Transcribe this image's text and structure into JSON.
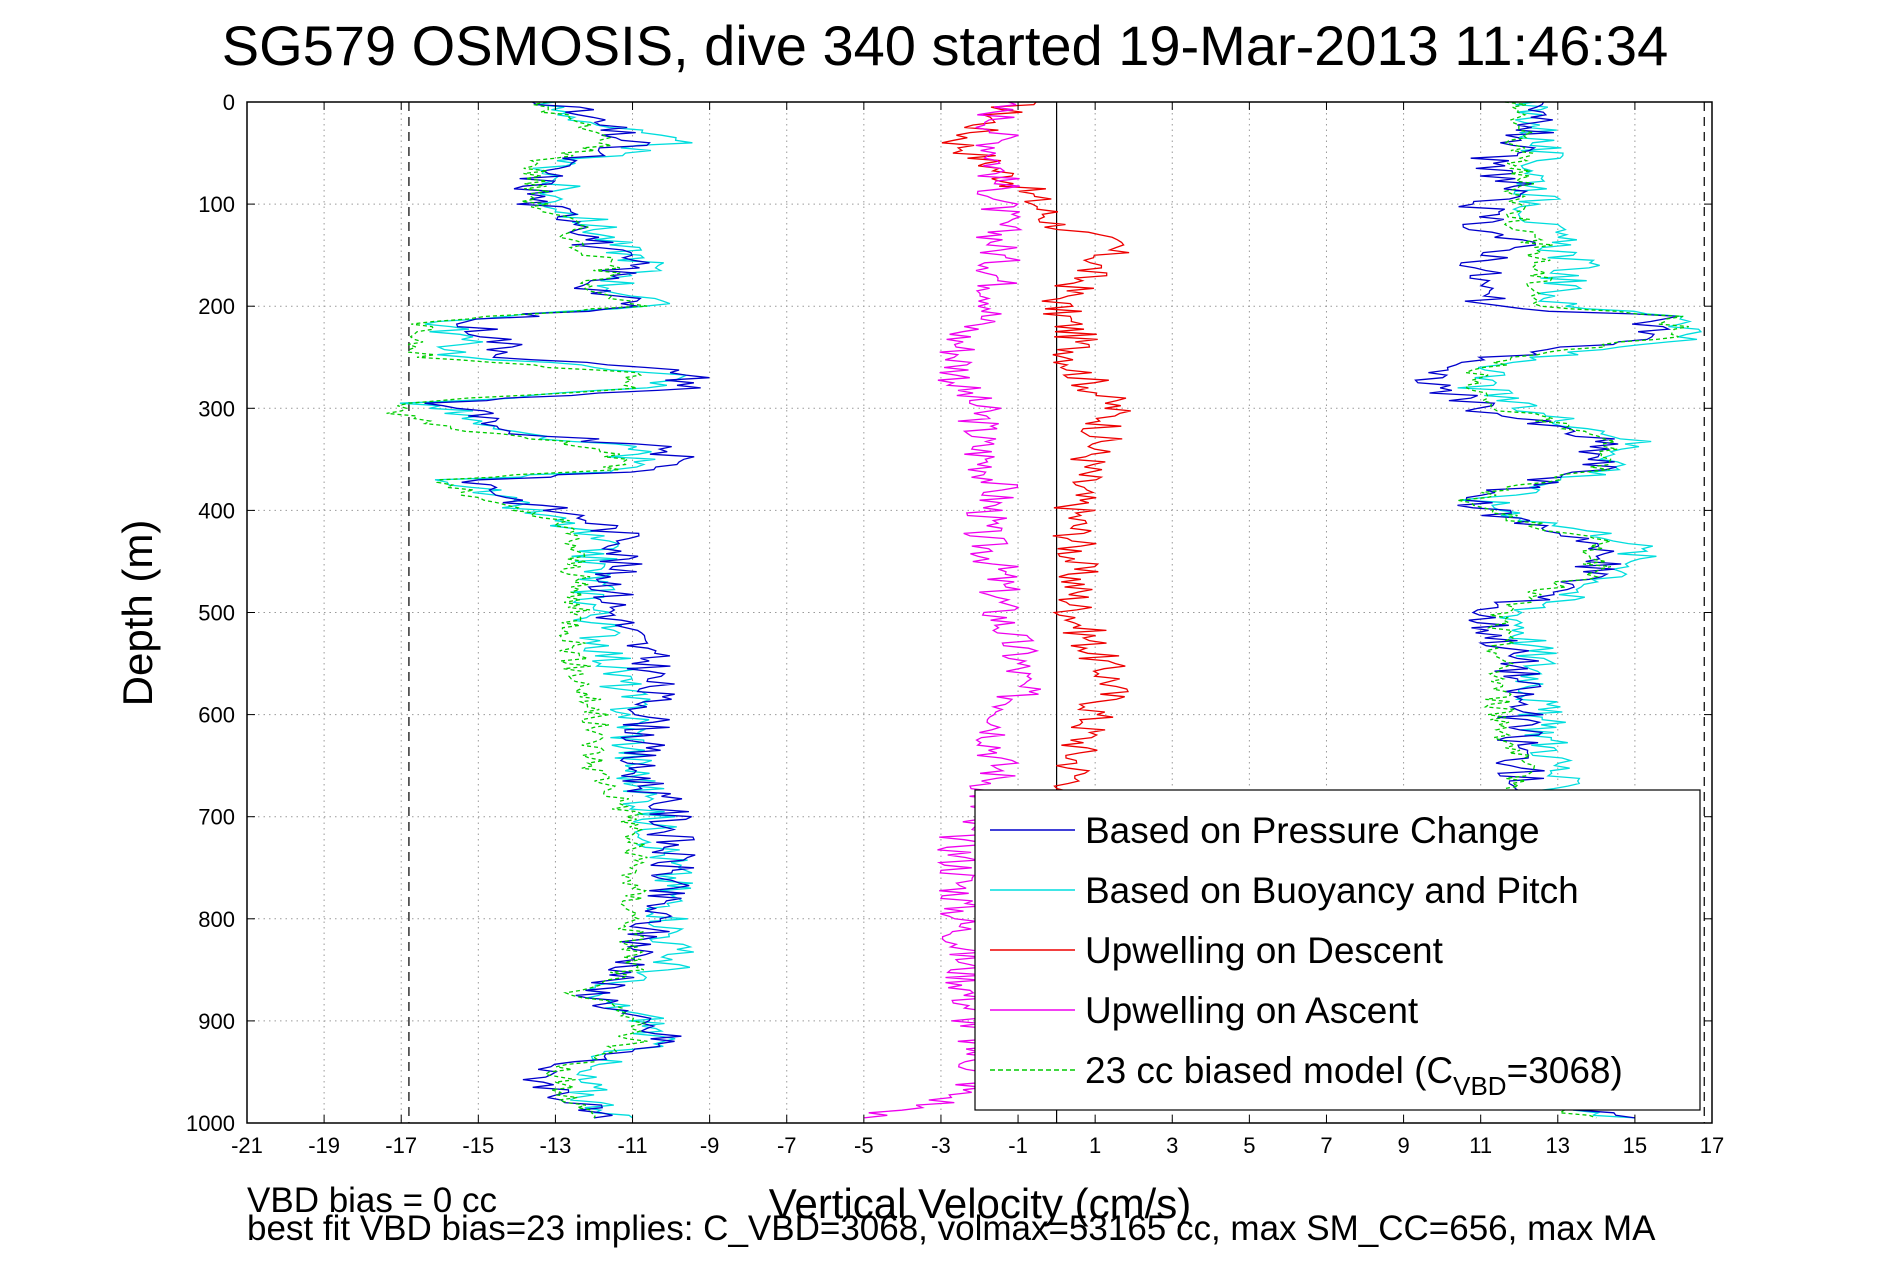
{
  "chart_data": {
    "type": "line",
    "title": "SG579 OSMOSIS, dive 340 started 19-Mar-2013 11:46:34",
    "xlabel": "Vertical Velocity (cm/s)",
    "ylabel": "Depth (m)",
    "xlim": [
      -21,
      17
    ],
    "ylim": [
      1000,
      0
    ],
    "y_reversed": true,
    "grid": true,
    "xticks": [
      "-21",
      "-19",
      "-17",
      "-15",
      "-13",
      "-11",
      "-9",
      "-7",
      "-5",
      "-3",
      "-1",
      "1",
      "3",
      "5",
      "7",
      "9",
      "11",
      "13",
      "15",
      "17"
    ],
    "yticks": [
      "0",
      "100",
      "200",
      "300",
      "400",
      "500",
      "600",
      "700",
      "800",
      "900",
      "1000"
    ],
    "reference_lines": {
      "dashed_x": [
        -16.8,
        16.8
      ],
      "solid_x": [
        0
      ]
    },
    "legend_position": "lower-right",
    "series": [
      {
        "name": "Based on Pressure Change",
        "color": "#0000cc",
        "descent": [
          [
            0,
            -13
          ],
          [
            20,
            -12
          ],
          [
            40,
            -11
          ],
          [
            60,
            -13
          ],
          [
            80,
            -13.5
          ],
          [
            100,
            -13.5
          ],
          [
            120,
            -12
          ],
          [
            140,
            -12
          ],
          [
            160,
            -11
          ],
          [
            180,
            -12
          ],
          [
            200,
            -11
          ],
          [
            215,
            -15.5
          ],
          [
            230,
            -14.5
          ],
          [
            250,
            -14
          ],
          [
            265,
            -9.5
          ],
          [
            280,
            -9.5
          ],
          [
            295,
            -16
          ],
          [
            305,
            -15
          ],
          [
            320,
            -15
          ],
          [
            340,
            -10
          ],
          [
            360,
            -10
          ],
          [
            370,
            -15
          ],
          [
            390,
            -14
          ],
          [
            410,
            -12
          ],
          [
            430,
            -11
          ],
          [
            460,
            -11.5
          ],
          [
            500,
            -11.5
          ],
          [
            550,
            -10.5
          ],
          [
            600,
            -10.5
          ],
          [
            650,
            -11
          ],
          [
            700,
            -10
          ],
          [
            750,
            -10
          ],
          [
            800,
            -10.5
          ],
          [
            850,
            -11
          ],
          [
            870,
            -12
          ],
          [
            900,
            -11
          ],
          [
            920,
            -10
          ],
          [
            950,
            -13.5
          ],
          [
            980,
            -12.5
          ],
          [
            995,
            -12
          ]
        ],
        "ascent": [
          [
            995,
            15
          ],
          [
            980,
            12
          ],
          [
            950,
            12
          ],
          [
            900,
            12
          ],
          [
            850,
            12
          ],
          [
            800,
            12.5
          ],
          [
            750,
            12.5
          ],
          [
            700,
            12.5
          ],
          [
            650,
            12
          ],
          [
            600,
            12
          ],
          [
            550,
            12
          ],
          [
            500,
            11
          ],
          [
            480,
            13
          ],
          [
            460,
            14
          ],
          [
            430,
            14
          ],
          [
            410,
            12
          ],
          [
            390,
            10.5
          ],
          [
            360,
            14
          ],
          [
            330,
            14
          ],
          [
            300,
            11
          ],
          [
            280,
            10
          ],
          [
            265,
            9.5
          ],
          [
            250,
            11.5
          ],
          [
            230,
            15.5
          ],
          [
            210,
            15.5
          ],
          [
            200,
            11
          ],
          [
            180,
            11
          ],
          [
            160,
            11
          ],
          [
            140,
            12
          ],
          [
            120,
            11
          ],
          [
            100,
            11
          ],
          [
            80,
            12
          ],
          [
            60,
            11
          ],
          [
            40,
            12
          ],
          [
            20,
            12.5
          ],
          [
            0,
            12
          ]
        ]
      },
      {
        "name": "Based on Buoyancy and Pitch",
        "color": "#00dddd",
        "descent": [
          [
            0,
            -13.5
          ],
          [
            20,
            -12
          ],
          [
            40,
            -10
          ],
          [
            60,
            -13
          ],
          [
            80,
            -13
          ],
          [
            100,
            -13
          ],
          [
            120,
            -12
          ],
          [
            140,
            -11.5
          ],
          [
            160,
            -10.5
          ],
          [
            180,
            -11.5
          ],
          [
            200,
            -10.5
          ],
          [
            215,
            -16
          ],
          [
            230,
            -15.5
          ],
          [
            250,
            -15.5
          ],
          [
            265,
            -10
          ],
          [
            280,
            -10.5
          ],
          [
            295,
            -16.5
          ],
          [
            305,
            -15.5
          ],
          [
            320,
            -15
          ],
          [
            340,
            -11
          ],
          [
            360,
            -11
          ],
          [
            370,
            -15.5
          ],
          [
            390,
            -14.5
          ],
          [
            410,
            -13
          ],
          [
            430,
            -12
          ],
          [
            460,
            -12
          ],
          [
            500,
            -12
          ],
          [
            550,
            -11.5
          ],
          [
            600,
            -11
          ],
          [
            650,
            -11
          ],
          [
            700,
            -10.5
          ],
          [
            750,
            -10
          ],
          [
            800,
            -10
          ],
          [
            850,
            -10
          ],
          [
            870,
            -12.5
          ],
          [
            900,
            -10.5
          ],
          [
            920,
            -10.5
          ],
          [
            950,
            -12.5
          ],
          [
            980,
            -12
          ],
          [
            995,
            -11
          ]
        ],
        "ascent": [
          [
            995,
            15
          ],
          [
            980,
            12
          ],
          [
            950,
            12
          ],
          [
            900,
            12.2
          ],
          [
            850,
            12.2
          ],
          [
            800,
            12.5
          ],
          [
            750,
            12.8
          ],
          [
            700,
            12.8
          ],
          [
            650,
            13
          ],
          [
            600,
            12.5
          ],
          [
            550,
            12.5
          ],
          [
            500,
            12
          ],
          [
            480,
            13.5
          ],
          [
            460,
            15
          ],
          [
            430,
            15
          ],
          [
            410,
            12.5
          ],
          [
            390,
            11
          ],
          [
            360,
            14.5
          ],
          [
            330,
            15
          ],
          [
            300,
            12
          ],
          [
            280,
            11
          ],
          [
            265,
            11
          ],
          [
            250,
            12.5
          ],
          [
            230,
            16.5
          ],
          [
            210,
            16.5
          ],
          [
            200,
            13
          ],
          [
            180,
            13
          ],
          [
            160,
            13.5
          ],
          [
            140,
            13
          ],
          [
            120,
            12.5
          ],
          [
            100,
            12.5
          ],
          [
            80,
            12.5
          ],
          [
            60,
            12.5
          ],
          [
            40,
            12.5
          ],
          [
            20,
            12.5
          ],
          [
            0,
            12
          ]
        ]
      },
      {
        "name": "Upwelling on Descent",
        "color": "#ee0000",
        "values": [
          [
            0,
            -1
          ],
          [
            40,
            -2.5
          ],
          [
            80,
            -1
          ],
          [
            120,
            0
          ],
          [
            140,
            1.5
          ],
          [
            160,
            1
          ],
          [
            200,
            0
          ],
          [
            230,
            0.5
          ],
          [
            260,
            0.5
          ],
          [
            280,
            1
          ],
          [
            300,
            1.5
          ],
          [
            340,
            1
          ],
          [
            380,
            0.5
          ],
          [
            420,
            0.5
          ],
          [
            460,
            0.5
          ],
          [
            500,
            0.5
          ],
          [
            540,
            1
          ],
          [
            570,
            1.5
          ],
          [
            600,
            1
          ],
          [
            640,
            0.5
          ],
          [
            680,
            0.5
          ]
        ]
      },
      {
        "name": "Upwelling on Ascent",
        "color": "#ee00ee",
        "values": [
          [
            0,
            -1.5
          ],
          [
            40,
            -1.5
          ],
          [
            80,
            -1.5
          ],
          [
            120,
            -1.5
          ],
          [
            160,
            -1.5
          ],
          [
            200,
            -1.5
          ],
          [
            230,
            -2.5
          ],
          [
            260,
            -2.5
          ],
          [
            280,
            -2.5
          ],
          [
            300,
            -2
          ],
          [
            340,
            -2
          ],
          [
            380,
            -1.5
          ],
          [
            420,
            -2
          ],
          [
            460,
            -1.5
          ],
          [
            500,
            -1.5
          ],
          [
            540,
            -1
          ],
          [
            580,
            -1
          ],
          [
            620,
            -1.5
          ],
          [
            660,
            -1.5
          ],
          [
            720,
            -2.5
          ],
          [
            760,
            -2.5
          ],
          [
            800,
            -2.5
          ],
          [
            960,
            -2
          ],
          [
            980,
            -3
          ],
          [
            995,
            -5
          ]
        ]
      },
      {
        "name": "23 cc biased model (C_VBD=3068)",
        "color": "#00cc00",
        "dashed": true,
        "descent": [
          [
            0,
            -13.5
          ],
          [
            20,
            -12.5
          ],
          [
            40,
            -11.5
          ],
          [
            60,
            -13.5
          ],
          [
            80,
            -13.5
          ],
          [
            100,
            -13.5
          ],
          [
            120,
            -12.5
          ],
          [
            140,
            -12.5
          ],
          [
            160,
            -11.5
          ],
          [
            180,
            -12
          ],
          [
            200,
            -11
          ],
          [
            215,
            -16.5
          ],
          [
            230,
            -16.5
          ],
          [
            250,
            -16.5
          ],
          [
            265,
            -11
          ],
          [
            280,
            -11
          ],
          [
            295,
            -17
          ],
          [
            305,
            -17
          ],
          [
            320,
            -15.5
          ],
          [
            340,
            -11.5
          ],
          [
            360,
            -11.5
          ],
          [
            370,
            -16
          ],
          [
            390,
            -15
          ],
          [
            410,
            -13
          ],
          [
            430,
            -12.5
          ],
          [
            460,
            -12.5
          ],
          [
            500,
            -12.5
          ],
          [
            550,
            -12.5
          ],
          [
            600,
            -12
          ],
          [
            650,
            -12
          ],
          [
            700,
            -11
          ],
          [
            750,
            -11
          ],
          [
            800,
            -11
          ],
          [
            850,
            -11
          ],
          [
            870,
            -12.5
          ],
          [
            900,
            -11
          ],
          [
            920,
            -11
          ],
          [
            950,
            -13
          ],
          [
            980,
            -12.5
          ],
          [
            995,
            -12
          ]
        ],
        "ascent": [
          [
            995,
            14
          ],
          [
            980,
            12
          ],
          [
            950,
            12
          ],
          [
            900,
            11.5
          ],
          [
            850,
            11.5
          ],
          [
            800,
            12
          ],
          [
            750,
            12
          ],
          [
            700,
            12
          ],
          [
            650,
            12
          ],
          [
            600,
            11.5
          ],
          [
            550,
            11.5
          ],
          [
            500,
            11.5
          ],
          [
            480,
            12.5
          ],
          [
            460,
            14
          ],
          [
            430,
            14
          ],
          [
            410,
            12
          ],
          [
            390,
            10.5
          ],
          [
            360,
            14
          ],
          [
            330,
            14.5
          ],
          [
            300,
            11.5
          ],
          [
            280,
            10.5
          ],
          [
            265,
            11
          ],
          [
            250,
            12
          ],
          [
            230,
            16
          ],
          [
            210,
            16
          ],
          [
            200,
            12.5
          ],
          [
            180,
            12.5
          ],
          [
            160,
            12.5
          ],
          [
            140,
            12.5
          ],
          [
            120,
            12
          ],
          [
            100,
            12
          ],
          [
            80,
            12
          ],
          [
            60,
            12
          ],
          [
            40,
            12
          ],
          [
            20,
            12
          ],
          [
            0,
            12
          ]
        ]
      }
    ],
    "legend": [
      {
        "label": "Based on Pressure Change",
        "color": "#0000cc",
        "dashed": false
      },
      {
        "label": "Based on Buoyancy and Pitch",
        "color": "#00dddd",
        "dashed": false
      },
      {
        "label": "Upwelling on Descent",
        "color": "#ee0000",
        "dashed": false
      },
      {
        "label": "Upwelling on Ascent",
        "color": "#ee00ee",
        "dashed": false
      },
      {
        "label": "23 cc biased model (C",
        "sub": "VBD",
        "suffix": "=3068)",
        "color": "#00cc00",
        "dashed": true
      }
    ],
    "annotations": [
      "VBD bias = 0 cc",
      "best fit VBD bias=23 implies: C_VBD=3068, volmax=53165 cc, max SM_CC=656, max MA"
    ]
  }
}
